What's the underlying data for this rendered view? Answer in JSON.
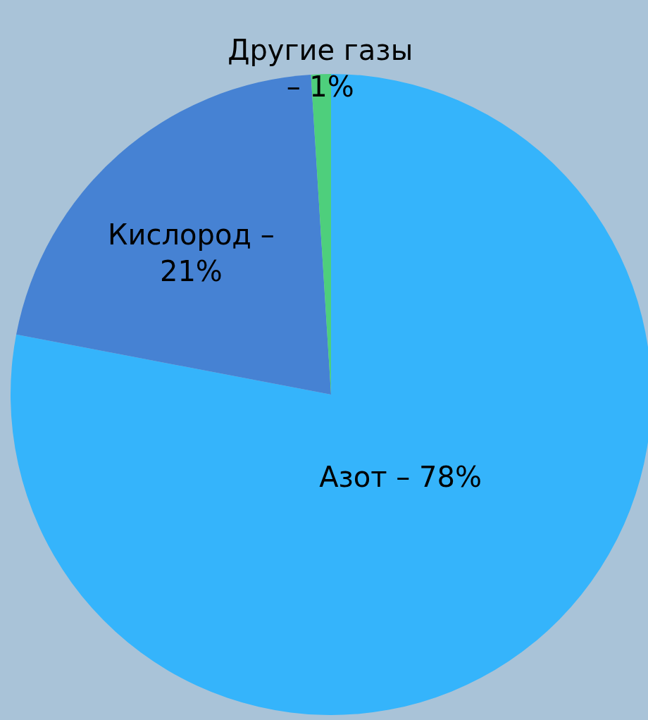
{
  "chart_data": {
    "type": "pie",
    "categories": [
      "Азот – 78%",
      "Кислород –\n21%",
      "Другие газы\n– 1%"
    ],
    "values": [
      78,
      21,
      1
    ],
    "colors": [
      "#35b4fb",
      "#4682d3",
      "#4ecf7c"
    ]
  }
}
